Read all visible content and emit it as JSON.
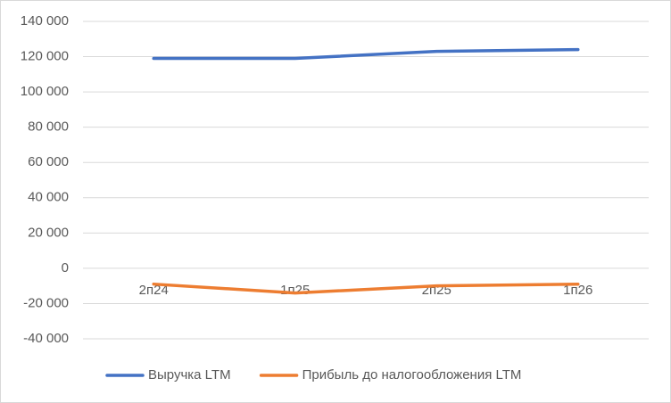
{
  "chart_data": {
    "type": "line",
    "categories": [
      "2п24",
      "1п25",
      "2п25",
      "1п26"
    ],
    "series": [
      {
        "name": "Выручка LTM",
        "color": "#4472c4",
        "values": [
          119000,
          119000,
          123000,
          124000
        ]
      },
      {
        "name": "Прибыль до налогообложения LTM",
        "color": "#ed7d31",
        "values": [
          -9000,
          -14000,
          -10000,
          -9000
        ]
      }
    ],
    "ylim": [
      -40000,
      140000
    ],
    "yticks": [
      {
        "value": -40000,
        "label": "-40 000"
      },
      {
        "value": -20000,
        "label": "-20 000"
      },
      0,
      {
        "value": 20000,
        "label": "20 000"
      },
      {
        "value": 40000,
        "label": "40 000"
      },
      {
        "value": 60000,
        "label": "60 000"
      },
      {
        "value": 80000,
        "label": "80 000"
      },
      {
        "value": 100000,
        "label": "100 000"
      },
      {
        "value": 120000,
        "label": "120 000"
      },
      {
        "value": 140000,
        "label": "140 000"
      }
    ],
    "grid": true,
    "legend": "bottom"
  }
}
